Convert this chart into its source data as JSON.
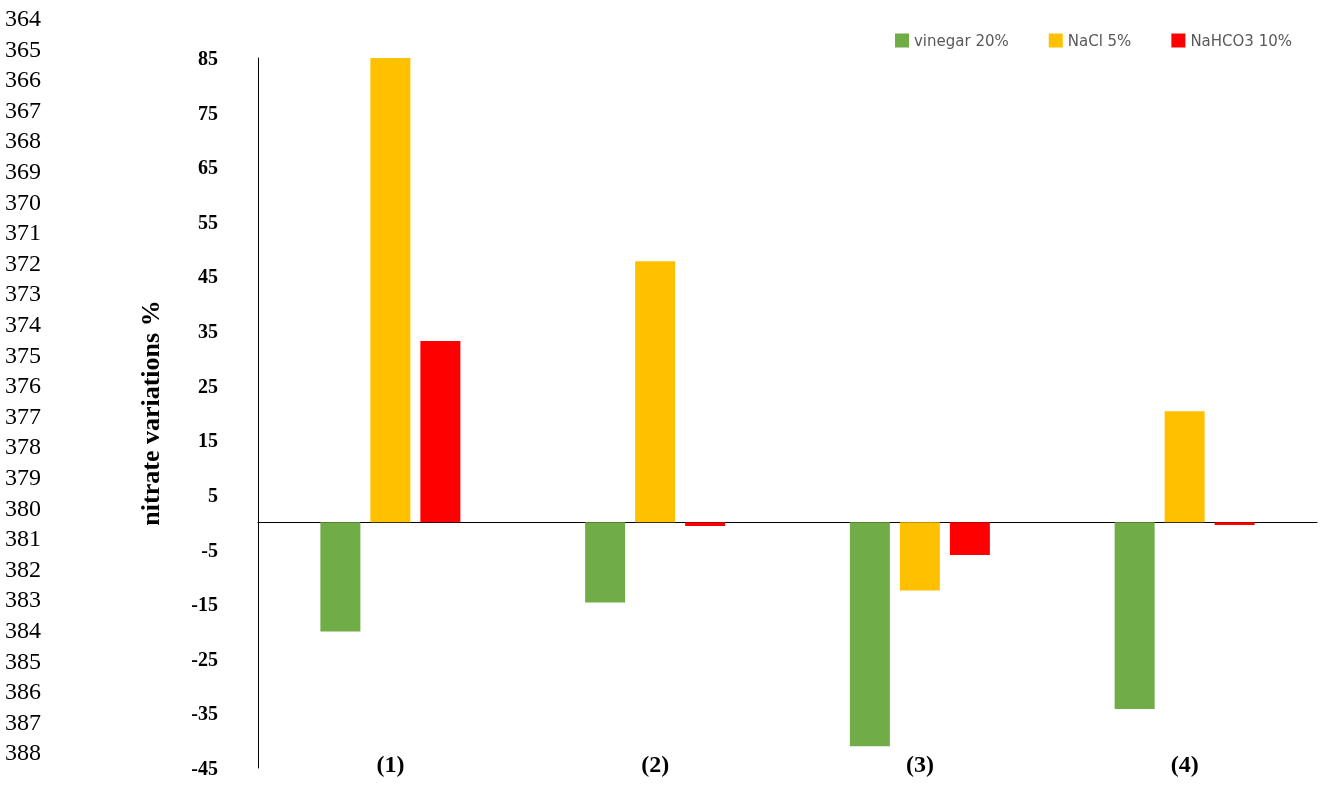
{
  "chart_data": {
    "type": "bar",
    "ylabel": "nitrate variations %",
    "categories": [
      "(1)",
      "(2)",
      "(3)",
      "(4)"
    ],
    "series": [
      {
        "name": "vinegar 20%",
        "color": "#70ad47",
        "values": [
          -20,
          -14.7,
          -41,
          -34.2
        ]
      },
      {
        "name": "NaCl 5%",
        "color": "#ffc000",
        "values": [
          85,
          47.8,
          -12.5,
          20.3
        ]
      },
      {
        "name": "NaHCO3 10%",
        "color": "#ff0000",
        "values": [
          33.2,
          -0.7,
          -6,
          -0.5
        ]
      }
    ],
    "ylim": [
      -45,
      85
    ],
    "yticks": [
      -45,
      -35,
      -25,
      -15,
      -5,
      5,
      15,
      25,
      35,
      45,
      55,
      65,
      75,
      85
    ],
    "grid": false,
    "legend": "top right",
    "annotations": [
      "364",
      "365",
      "366",
      "367",
      "368",
      "369",
      "370",
      "371",
      "372",
      "373",
      "374",
      "375",
      "376",
      "377",
      "378",
      "379",
      "380",
      "381",
      "382",
      "383",
      "384",
      "385",
      "386",
      "387",
      "388"
    ]
  }
}
